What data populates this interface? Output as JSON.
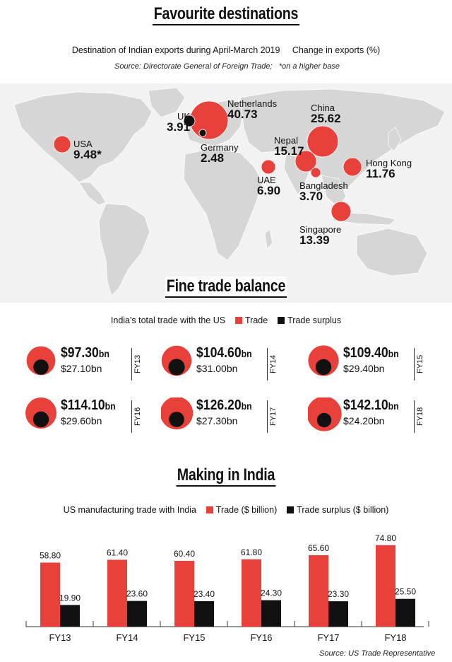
{
  "headings": {
    "favourite": "Favourite destinations",
    "fine": "Fine trade balance",
    "making": "Making in India"
  },
  "map": {
    "subtitle": "Destination of Indian exports during April-March 2019",
    "legend_label": "Change in exports (%)",
    "source": "Source: Directorate General of Foreign Trade;",
    "note": "*on a higher base",
    "countries": [
      {
        "name": "USA",
        "value": "9.48*"
      },
      {
        "name": "UK",
        "value": "3.91"
      },
      {
        "name": "Netherlands",
        "value": "40.73"
      },
      {
        "name": "Germany",
        "value": "2.48"
      },
      {
        "name": "China",
        "value": "25.62"
      },
      {
        "name": "Nepal",
        "value": "15.17"
      },
      {
        "name": "UAE",
        "value": "6.90"
      },
      {
        "name": "Bangladesh",
        "value": "3.70"
      },
      {
        "name": "Hong Kong",
        "value": "11.76"
      },
      {
        "name": "Singapore",
        "value": "13.39"
      }
    ]
  },
  "trade_balance": {
    "subtitle": "India's total trade with the US",
    "legend": [
      "Trade",
      "Trade surplus"
    ],
    "items": [
      {
        "fy": "FY13",
        "trade": "$97.30",
        "trade_unit": "bn",
        "surplus": "$27.10bn"
      },
      {
        "fy": "FY14",
        "trade": "$104.60",
        "trade_unit": "bn",
        "surplus": "$31.00bn"
      },
      {
        "fy": "FY15",
        "trade": "$109.40",
        "trade_unit": "bn",
        "surplus": "$29.40bn"
      },
      {
        "fy": "FY16",
        "trade": "$114.10",
        "trade_unit": "bn",
        "surplus": "$29.60bn"
      },
      {
        "fy": "FY17",
        "trade": "$126.20",
        "trade_unit": "bn",
        "surplus": "$27.30bn"
      },
      {
        "fy": "FY18",
        "trade": "$142.10",
        "trade_unit": "bn",
        "surplus": "$24.20bn"
      }
    ]
  },
  "making": {
    "subtitle": "US manufacturing trade with India",
    "legend": [
      "Trade  ($ billion)",
      "Trade surplus  ($ billion)"
    ],
    "source": "Source: US Trade Representative"
  },
  "colors": {
    "trade": "#e8403a",
    "surplus": "#111111",
    "land": "#d9d9d9",
    "map_bg": "#f2f2f2"
  },
  "chart_data": [
    {
      "type": "bubble",
      "title": "Favourite destinations",
      "categories": [
        "USA",
        "UK",
        "Netherlands",
        "Germany",
        "China",
        "Nepal",
        "UAE",
        "Bangladesh",
        "Hong Kong",
        "Singapore"
      ],
      "values": [
        9.48,
        3.91,
        40.73,
        2.48,
        25.62,
        15.17,
        6.9,
        3.7,
        11.76,
        13.39
      ]
    },
    {
      "type": "bubble",
      "title": "Fine trade balance",
      "categories": [
        "FY13",
        "FY14",
        "FY15",
        "FY16",
        "FY17",
        "FY18"
      ],
      "series": [
        {
          "name": "Trade",
          "values": [
            97.3,
            104.6,
            109.4,
            114.1,
            126.2,
            142.1
          ]
        },
        {
          "name": "Trade surplus",
          "values": [
            27.1,
            31.0,
            29.4,
            29.6,
            27.3,
            24.2
          ]
        }
      ]
    },
    {
      "type": "bar",
      "title": "Making in India",
      "categories": [
        "FY13",
        "FY14",
        "FY15",
        "FY16",
        "FY17",
        "FY18"
      ],
      "series": [
        {
          "name": "Trade  ($ billion)",
          "values": [
            58.8,
            61.4,
            60.4,
            61.8,
            65.6,
            74.8
          ]
        },
        {
          "name": "Trade surplus  ($ billion)",
          "values": [
            19.9,
            23.6,
            23.4,
            24.3,
            23.3,
            25.5
          ]
        }
      ],
      "ylim": [
        0,
        80
      ]
    }
  ]
}
